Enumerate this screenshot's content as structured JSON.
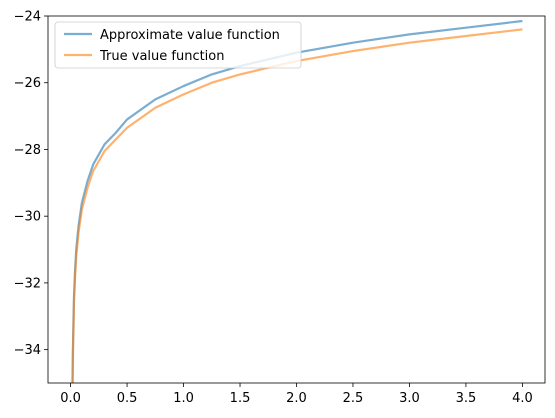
{
  "chart_data": {
    "type": "line",
    "title": "",
    "xlabel": "",
    "ylabel": "",
    "xlim": [
      -0.2,
      4.2
    ],
    "ylim": [
      -35,
      -24
    ],
    "x_ticks": [
      0.0,
      0.5,
      1.0,
      1.5,
      2.0,
      2.5,
      3.0,
      3.5,
      4.0
    ],
    "x_tick_labels": [
      "0.0",
      "0.5",
      "1.0",
      "1.5",
      "2.0",
      "2.5",
      "3.0",
      "3.5",
      "4.0"
    ],
    "y_ticks": [
      -34,
      -32,
      -30,
      -28,
      -26,
      -24
    ],
    "y_tick_labels": [
      "−34",
      "−32",
      "−30",
      "−28",
      "−26",
      "−24"
    ],
    "grid": false,
    "legend_position": "upper-left",
    "series": [
      {
        "name": "Approximate value function",
        "color": "#1f77b4",
        "x": [
          0.015,
          0.02,
          0.03,
          0.04,
          0.05,
          0.07,
          0.1,
          0.15,
          0.2,
          0.3,
          0.4,
          0.5,
          0.75,
          1.0,
          1.25,
          1.5,
          1.75,
          2.0,
          2.5,
          3.0,
          3.5,
          4.0
        ],
        "y": [
          -35.5,
          -34.1,
          -32.4,
          -31.6,
          -31.0,
          -30.3,
          -29.6,
          -28.95,
          -28.45,
          -27.85,
          -27.5,
          -27.1,
          -26.5,
          -26.1,
          -25.75,
          -25.5,
          -25.3,
          -25.1,
          -24.8,
          -24.55,
          -24.35,
          -24.15
        ]
      },
      {
        "name": "True value function",
        "color": "#ff7f0e",
        "x": [
          0.015,
          0.02,
          0.03,
          0.04,
          0.05,
          0.07,
          0.1,
          0.15,
          0.2,
          0.3,
          0.4,
          0.5,
          0.75,
          1.0,
          1.25,
          1.5,
          1.75,
          2.0,
          2.5,
          3.0,
          3.5,
          4.0
        ],
        "y": [
          -35.7,
          -34.3,
          -32.6,
          -31.8,
          -31.2,
          -30.5,
          -29.8,
          -29.15,
          -28.65,
          -28.05,
          -27.7,
          -27.35,
          -26.75,
          -26.35,
          -26.0,
          -25.75,
          -25.55,
          -25.35,
          -25.05,
          -24.8,
          -24.6,
          -24.4
        ]
      }
    ]
  }
}
